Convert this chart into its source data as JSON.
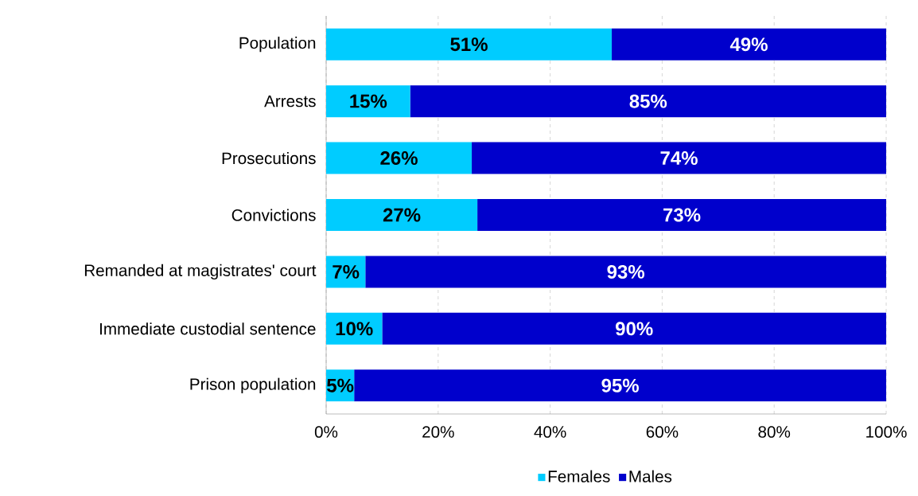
{
  "chart_data": {
    "type": "bar",
    "orientation": "horizontal",
    "stacked": true,
    "categories": [
      "Population",
      "Arrests",
      "Prosecutions",
      "Convictions",
      "Remanded at magistrates' court",
      "Immediate custodial sentence",
      "Prison population"
    ],
    "series": [
      {
        "name": "Females",
        "color": "#00ccff",
        "values": [
          51,
          15,
          26,
          27,
          7,
          10,
          5
        ],
        "value_labels": [
          "51%",
          "15%",
          "26%",
          "27%",
          "7%",
          "10%",
          "5%"
        ]
      },
      {
        "name": "Males",
        "color": "#0000cc",
        "values": [
          49,
          85,
          74,
          73,
          93,
          90,
          95
        ],
        "value_labels": [
          "49%",
          "85%",
          "74%",
          "73%",
          "93%",
          "90%",
          "95%"
        ]
      }
    ],
    "xlim": [
      0,
      100
    ],
    "xticks": [
      {
        "value": 0,
        "label": "0%"
      },
      {
        "value": 20,
        "label": "20%"
      },
      {
        "value": 40,
        "label": "40%"
      },
      {
        "value": 60,
        "label": "60%"
      },
      {
        "value": 80,
        "label": "80%"
      },
      {
        "value": 100,
        "label": "100%"
      }
    ],
    "grid": "x",
    "legend": "bottom"
  }
}
